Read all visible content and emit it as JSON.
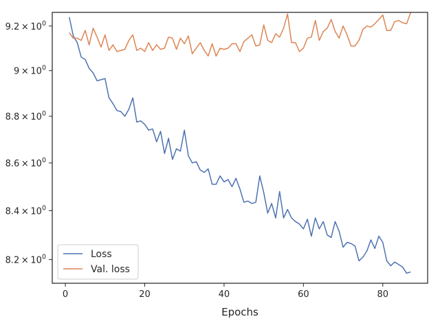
{
  "chart_data": {
    "type": "line",
    "title": "",
    "xlabel": "Epochs",
    "ylabel": "",
    "yscale": "log",
    "xlim": [
      -3.3,
      91.3
    ],
    "ylim": [
      8.105,
      9.262
    ],
    "xticks": [
      {
        "value": 0,
        "label": "0"
      },
      {
        "value": 20,
        "label": "20"
      },
      {
        "value": 40,
        "label": "40"
      },
      {
        "value": 60,
        "label": "60"
      },
      {
        "value": 80,
        "label": "80"
      }
    ],
    "yticks": [
      {
        "value": 8.2,
        "label": "8.2",
        "mantissa": "8.2",
        "base": "10",
        "exp": "0"
      },
      {
        "value": 8.4,
        "label": "8.4",
        "mantissa": "8.4",
        "base": "10",
        "exp": "0"
      },
      {
        "value": 8.6,
        "label": "8.6",
        "mantissa": "8.6",
        "base": "10",
        "exp": "0"
      },
      {
        "value": 8.8,
        "label": "8.8",
        "mantissa": "8.8",
        "base": "10",
        "exp": "0"
      },
      {
        "value": 9.0,
        "label": "9",
        "mantissa": "9",
        "base": "10",
        "exp": "0"
      },
      {
        "value": 9.2,
        "label": "9.2",
        "mantissa": "9.2",
        "base": "10",
        "exp": "0"
      }
    ],
    "grid": false,
    "legend_position": "lower-left",
    "x": [
      1,
      2,
      3,
      4,
      5,
      6,
      7,
      8,
      9,
      10,
      11,
      12,
      13,
      14,
      15,
      16,
      17,
      18,
      19,
      20,
      21,
      22,
      23,
      24,
      25,
      26,
      27,
      28,
      29,
      30,
      31,
      32,
      33,
      34,
      35,
      36,
      37,
      38,
      39,
      40,
      41,
      42,
      43,
      44,
      45,
      46,
      47,
      48,
      49,
      50,
      51,
      52,
      53,
      54,
      55,
      56,
      57,
      58,
      59,
      60,
      61,
      62,
      63,
      64,
      65,
      66,
      67,
      68,
      69,
      70,
      71,
      72,
      73,
      74,
      75,
      76,
      77,
      78,
      79,
      80,
      81,
      82,
      83,
      84,
      85,
      86,
      87
    ],
    "series": [
      {
        "name": "Loss",
        "color": "#4c72b0",
        "values": [
          9.24,
          9.155,
          9.125,
          9.06,
          9.05,
          9.01,
          8.99,
          8.955,
          8.96,
          8.965,
          8.88,
          8.855,
          8.825,
          8.82,
          8.8,
          8.83,
          8.88,
          8.775,
          8.78,
          8.765,
          8.74,
          8.745,
          8.69,
          8.735,
          8.64,
          8.705,
          8.615,
          8.66,
          8.65,
          8.74,
          8.63,
          8.6,
          8.605,
          8.57,
          8.56,
          8.575,
          8.51,
          8.51,
          8.545,
          8.52,
          8.53,
          8.5,
          8.535,
          8.49,
          8.435,
          8.44,
          8.43,
          8.435,
          8.545,
          8.475,
          8.39,
          8.43,
          8.37,
          8.48,
          8.37,
          8.405,
          8.37,
          8.355,
          8.345,
          8.325,
          8.365,
          8.295,
          8.37,
          8.325,
          8.355,
          8.3,
          8.29,
          8.355,
          8.315,
          8.25,
          8.27,
          8.265,
          8.255,
          8.195,
          8.21,
          8.235,
          8.28,
          8.245,
          8.295,
          8.27,
          8.195,
          8.175,
          8.19,
          8.18,
          8.17,
          8.145,
          8.15
        ]
      },
      {
        "name": "Val. loss",
        "color": "#dd8452",
        "values": [
          9.17,
          9.145,
          9.145,
          9.135,
          9.18,
          9.115,
          9.19,
          9.15,
          9.105,
          9.16,
          9.09,
          9.115,
          9.085,
          9.09,
          9.095,
          9.135,
          9.16,
          9.09,
          9.1,
          9.085,
          9.125,
          9.09,
          9.115,
          9.095,
          9.1,
          9.15,
          9.145,
          9.095,
          9.145,
          9.12,
          9.155,
          9.075,
          9.1,
          9.125,
          9.09,
          9.065,
          9.12,
          9.065,
          9.1,
          9.095,
          9.1,
          9.12,
          9.12,
          9.085,
          9.13,
          9.145,
          9.16,
          9.11,
          9.115,
          9.205,
          9.135,
          9.125,
          9.165,
          9.15,
          9.19,
          9.255,
          9.125,
          9.125,
          9.085,
          9.1,
          9.145,
          9.15,
          9.225,
          9.135,
          9.175,
          9.19,
          9.23,
          9.175,
          9.145,
          9.2,
          9.16,
          9.11,
          9.11,
          9.135,
          9.185,
          9.2,
          9.195,
          9.21,
          9.23,
          9.25,
          9.18,
          9.18,
          9.22,
          9.225,
          9.215,
          9.21,
          9.26
        ]
      }
    ]
  }
}
